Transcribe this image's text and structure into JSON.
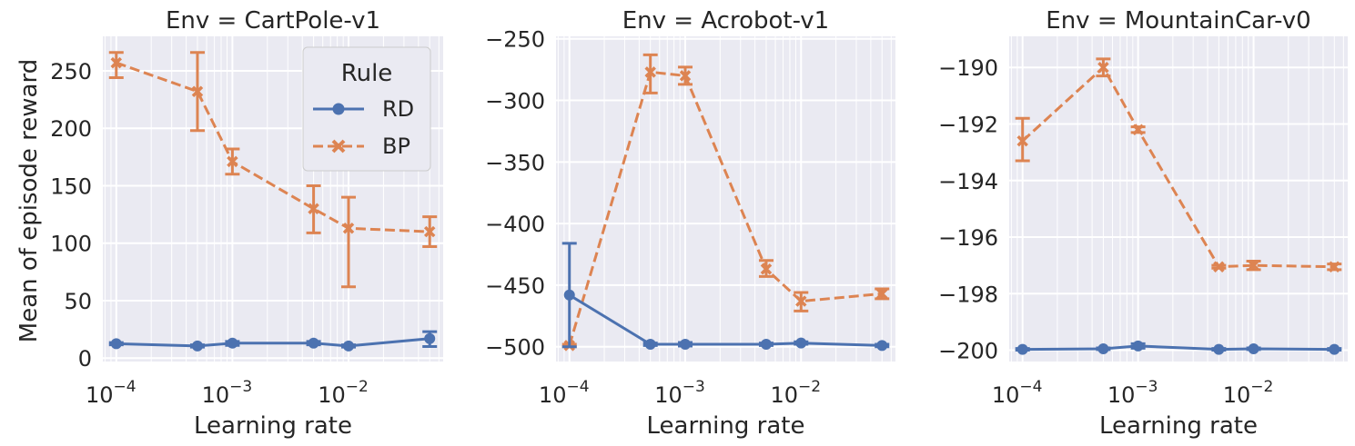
{
  "figure": {
    "ylabel": "Mean of episode reward",
    "legend": {
      "title": "Rule",
      "placement": "top-right of first panel",
      "entries": [
        "RD",
        "BP"
      ]
    }
  },
  "chart_data": [
    {
      "type": "line",
      "title": "Env = CartPole-v1",
      "xlabel": "Learning rate",
      "ylabel": "Mean of episode reward",
      "xscale": "log",
      "xlim": [
        7.66e-05,
        0.0653
      ],
      "ylim": [
        -3,
        280
      ],
      "x_ticks": [
        0.0001,
        0.001,
        0.01
      ],
      "x_tick_labels": [
        "10",
        "10",
        "10"
      ],
      "x_tick_exponents": [
        "−4",
        "−3",
        "−2"
      ],
      "y_ticks": [
        0,
        50,
        100,
        150,
        200,
        250
      ],
      "y_tick_labels": [
        "0",
        "50",
        "100",
        "150",
        "200",
        "250"
      ],
      "grid": true,
      "legend": "top-right",
      "x": [
        0.0001,
        0.0005,
        0.001,
        0.005,
        0.01,
        0.05
      ],
      "series": [
        {
          "name": "RD",
          "color": "#4c72b0",
          "marker": "circle",
          "linestyle": "solid",
          "values": [
            12.5,
            10.5,
            13,
            13,
            10.5,
            17
          ],
          "err_low": [
            11.5,
            9.5,
            11,
            11.5,
            9.5,
            10
          ],
          "err_high": [
            13.5,
            11.5,
            14.5,
            14.5,
            11.5,
            23
          ]
        },
        {
          "name": "BP",
          "color": "#dd8452",
          "marker": "x",
          "linestyle": "dashed",
          "values": [
            257,
            232,
            171,
            130,
            113,
            110
          ],
          "err_low": [
            244,
            198,
            160,
            109,
            62,
            97
          ],
          "err_high": [
            266,
            266,
            182,
            150,
            140,
            123
          ]
        }
      ]
    },
    {
      "type": "line",
      "title": "Env = Acrobot-v1",
      "xlabel": "Learning rate",
      "ylabel": "",
      "xscale": "log",
      "xlim": [
        7.66e-05,
        0.0653
      ],
      "ylim": [
        -512,
        -248
      ],
      "x_ticks": [
        0.0001,
        0.001,
        0.01
      ],
      "x_tick_labels": [
        "10",
        "10",
        "10"
      ],
      "x_tick_exponents": [
        "−4",
        "−3",
        "−2"
      ],
      "y_ticks": [
        -500,
        -450,
        -400,
        -350,
        -300,
        -250
      ],
      "y_tick_labels": [
        "−500",
        "−450",
        "−400",
        "−350",
        "−300",
        "−250"
      ],
      "grid": true,
      "x": [
        0.0001,
        0.0005,
        0.001,
        0.005,
        0.01,
        0.05
      ],
      "series": [
        {
          "name": "RD",
          "color": "#4c72b0",
          "marker": "circle",
          "linestyle": "solid",
          "values": [
            -458,
            -498,
            -498,
            -498,
            -497,
            -499
          ],
          "err_low": [
            -500,
            -499,
            -499.5,
            -499,
            -498,
            -500
          ],
          "err_high": [
            -416,
            -497,
            -496.5,
            -497,
            -496,
            -498
          ]
        },
        {
          "name": "BP",
          "color": "#dd8452",
          "marker": "x",
          "linestyle": "dashed",
          "values": [
            -499,
            -277,
            -280,
            -437,
            -463,
            -457
          ],
          "err_low": [
            -500,
            -294,
            -287,
            -443,
            -471,
            -461
          ],
          "err_high": [
            -498,
            -263,
            -273,
            -430,
            -456,
            -453
          ]
        }
      ]
    },
    {
      "type": "line",
      "title": "Env = MountainCar-v0",
      "xlabel": "Learning rate",
      "ylabel": "",
      "xscale": "log",
      "xlim": [
        7.66e-05,
        0.0653
      ],
      "ylim": [
        -200.4,
        -188.9
      ],
      "x_ticks": [
        0.0001,
        0.001,
        0.01
      ],
      "x_tick_labels": [
        "10",
        "10",
        "10"
      ],
      "x_tick_exponents": [
        "−4",
        "−3",
        "−2"
      ],
      "y_ticks": [
        -200,
        -198,
        -196,
        -194,
        -192,
        -190
      ],
      "y_tick_labels": [
        "−200",
        "−198",
        "−196",
        "−194",
        "−192",
        "−190"
      ],
      "grid": true,
      "x": [
        0.0001,
        0.0005,
        0.001,
        0.005,
        0.01,
        0.05
      ],
      "series": [
        {
          "name": "RD",
          "color": "#4c72b0",
          "marker": "circle",
          "linestyle": "solid",
          "values": [
            -199.97,
            -199.95,
            -199.85,
            -199.97,
            -199.95,
            -199.97
          ],
          "err_low": [
            -200.0,
            -199.98,
            -199.93,
            -200.0,
            -199.98,
            -200.0
          ],
          "err_high": [
            -199.94,
            -199.92,
            -199.77,
            -199.94,
            -199.92,
            -199.94
          ]
        },
        {
          "name": "BP",
          "color": "#dd8452",
          "marker": "x",
          "linestyle": "dashed",
          "values": [
            -192.6,
            -190.0,
            -192.2,
            -197.05,
            -197.0,
            -197.05
          ],
          "err_low": [
            -193.3,
            -190.3,
            -192.3,
            -197.1,
            -197.15,
            -197.15
          ],
          "err_high": [
            -191.8,
            -189.7,
            -192.1,
            -197.0,
            -196.85,
            -196.95
          ]
        }
      ]
    }
  ]
}
